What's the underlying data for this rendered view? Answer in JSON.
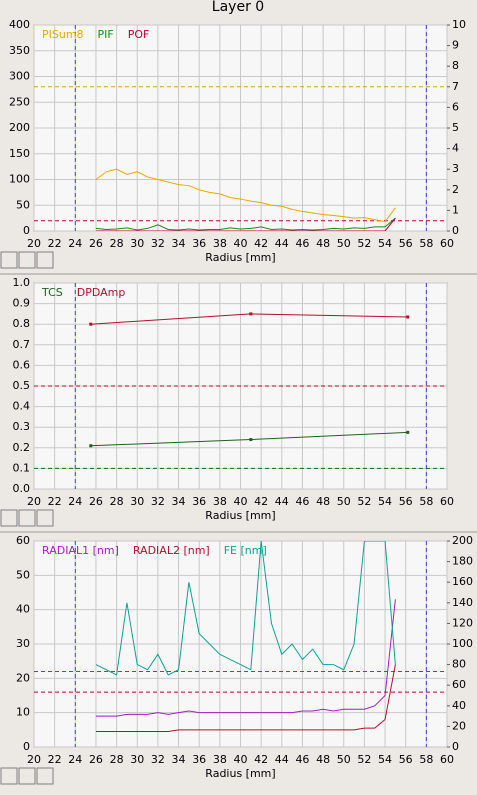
{
  "page": {
    "title": "Layer 0"
  },
  "chart_data": [
    {
      "type": "line",
      "xlabel": "Radius [mm]",
      "grid": true,
      "xlim": [
        20,
        60
      ],
      "xticks": [
        20,
        22,
        24,
        26,
        28,
        30,
        32,
        34,
        36,
        38,
        40,
        42,
        44,
        46,
        48,
        50,
        52,
        54,
        56,
        58,
        60
      ],
      "ylim": [
        0,
        400
      ],
      "yticks": [
        0,
        50,
        100,
        150,
        200,
        250,
        300,
        350,
        400
      ],
      "y2lim": [
        0,
        10
      ],
      "y2ticks": [
        0,
        1,
        2,
        3,
        4,
        5,
        6,
        7,
        8,
        9,
        10
      ],
      "vlines": {
        "color": "#4040e0",
        "values": [
          24,
          58
        ]
      },
      "thresholds": [
        {
          "color": "#d4a017",
          "value": 280
        },
        {
          "color": "#c00030",
          "value": 20
        }
      ],
      "x": [
        26,
        27,
        28,
        29,
        30,
        31,
        32,
        33,
        34,
        35,
        36,
        37,
        38,
        39,
        40,
        41,
        42,
        43,
        44,
        45,
        46,
        47,
        48,
        49,
        50,
        51,
        52,
        53,
        54,
        55
      ],
      "series": [
        {
          "name": "PISum8",
          "color": "#e8a800",
          "values": [
            100,
            115,
            120,
            110,
            115,
            105,
            100,
            95,
            90,
            88,
            80,
            75,
            72,
            65,
            62,
            58,
            55,
            50,
            48,
            42,
            38,
            35,
            32,
            30,
            28,
            25,
            26,
            22,
            18,
            45
          ]
        },
        {
          "name": "PIF",
          "color": "#109010",
          "values": [
            5,
            3,
            4,
            6,
            2,
            5,
            12,
            3,
            2,
            4,
            2,
            3,
            3,
            6,
            4,
            5,
            8,
            3,
            4,
            2,
            3,
            2,
            3,
            5,
            4,
            6,
            5,
            8,
            8,
            25
          ]
        },
        {
          "name": "POF",
          "color": "#c00030",
          "values": [
            0,
            0,
            0,
            0,
            0,
            0,
            0,
            0,
            0,
            0,
            0,
            0,
            0,
            0,
            0,
            0,
            0,
            0,
            0,
            0,
            0,
            0,
            0,
            0,
            0,
            0,
            0,
            0,
            0,
            25
          ]
        }
      ]
    },
    {
      "type": "line",
      "xlabel": "Radius [mm]",
      "grid": true,
      "markers": true,
      "xlim": [
        20,
        60
      ],
      "xticks": [
        20,
        22,
        24,
        26,
        28,
        30,
        32,
        34,
        36,
        38,
        40,
        42,
        44,
        46,
        48,
        50,
        52,
        54,
        56,
        58,
        60
      ],
      "ylim": [
        0,
        1
      ],
      "yticks": [
        {
          "value": 0,
          "label": "0.0"
        },
        0.1,
        0.2,
        0.3,
        0.4,
        0.5,
        0.6,
        0.7,
        0.8,
        0.9,
        {
          "value": 1,
          "label": "1.0"
        }
      ],
      "vlines": {
        "color": "#4040e0",
        "values": [
          24,
          58
        ]
      },
      "thresholds": [
        {
          "color": "#c00030",
          "value": 0.5
        },
        {
          "color": "#107010",
          "value": 0.1
        }
      ],
      "x": [
        25.5,
        41,
        56.2
      ],
      "series": [
        {
          "name": "TCS",
          "color": "#206020",
          "values": [
            0.21,
            0.24,
            0.275
          ]
        },
        {
          "name": "DPDAmp",
          "color": "#b01030",
          "values": [
            0.8,
            0.85,
            0.835
          ]
        }
      ]
    },
    {
      "type": "line",
      "xlabel": "Radius [mm]",
      "grid": true,
      "xlim": [
        20,
        60
      ],
      "xticks": [
        20,
        22,
        24,
        26,
        28,
        30,
        32,
        34,
        36,
        38,
        40,
        42,
        44,
        46,
        48,
        50,
        52,
        54,
        56,
        58,
        60
      ],
      "ylim": [
        0,
        60
      ],
      "yticks": [
        0,
        10,
        20,
        30,
        40,
        50,
        60
      ],
      "y2lim": [
        0,
        200
      ],
      "y2ticks": [
        0,
        20,
        40,
        60,
        80,
        100,
        120,
        140,
        160,
        180,
        200
      ],
      "vlines": {
        "color": "#4040e0",
        "values": [
          24,
          58
        ]
      },
      "thresholds": [
        {
          "color": "#a020c0",
          "value": 22
        },
        {
          "color": "#c00030",
          "value": 16
        }
      ],
      "x": [
        26,
        27,
        28,
        29,
        30,
        31,
        32,
        33,
        34,
        35,
        36,
        37,
        38,
        39,
        40,
        41,
        42,
        43,
        44,
        45,
        46,
        47,
        48,
        49,
        50,
        51,
        52,
        53,
        54,
        55
      ],
      "series": [
        {
          "name": "RADIAL1 [nm]",
          "color": "#a020c0",
          "values": [
            9,
            9,
            9,
            9.5,
            9.5,
            9.5,
            10,
            9.5,
            10,
            10.5,
            10,
            10,
            10,
            10,
            10,
            10,
            10,
            10,
            10,
            10,
            10.5,
            10.5,
            11,
            10.5,
            11,
            11,
            11,
            12,
            15,
            43
          ]
        },
        {
          "name": "RADIAL2 [nm]",
          "color": "#b01030",
          "values": [
            4.5,
            4.5,
            4.5,
            4.5,
            4.5,
            4.5,
            4.5,
            4.5,
            5,
            5,
            5,
            5,
            5,
            5,
            5,
            5,
            5,
            5,
            5,
            5,
            5,
            5,
            5,
            5,
            5,
            5,
            5.5,
            5.5,
            8,
            24
          ]
        },
        {
          "name": "FE [nm]",
          "color": "#10a090",
          "axis": "y2",
          "values": [
            80,
            75,
            70,
            140,
            80,
            75,
            90,
            70,
            75,
            160,
            110,
            100,
            90,
            85,
            80,
            75,
            200,
            120,
            90,
            100,
            85,
            95,
            80,
            80,
            75,
            100,
            200,
            200,
            200,
            80
          ]
        }
      ]
    }
  ]
}
